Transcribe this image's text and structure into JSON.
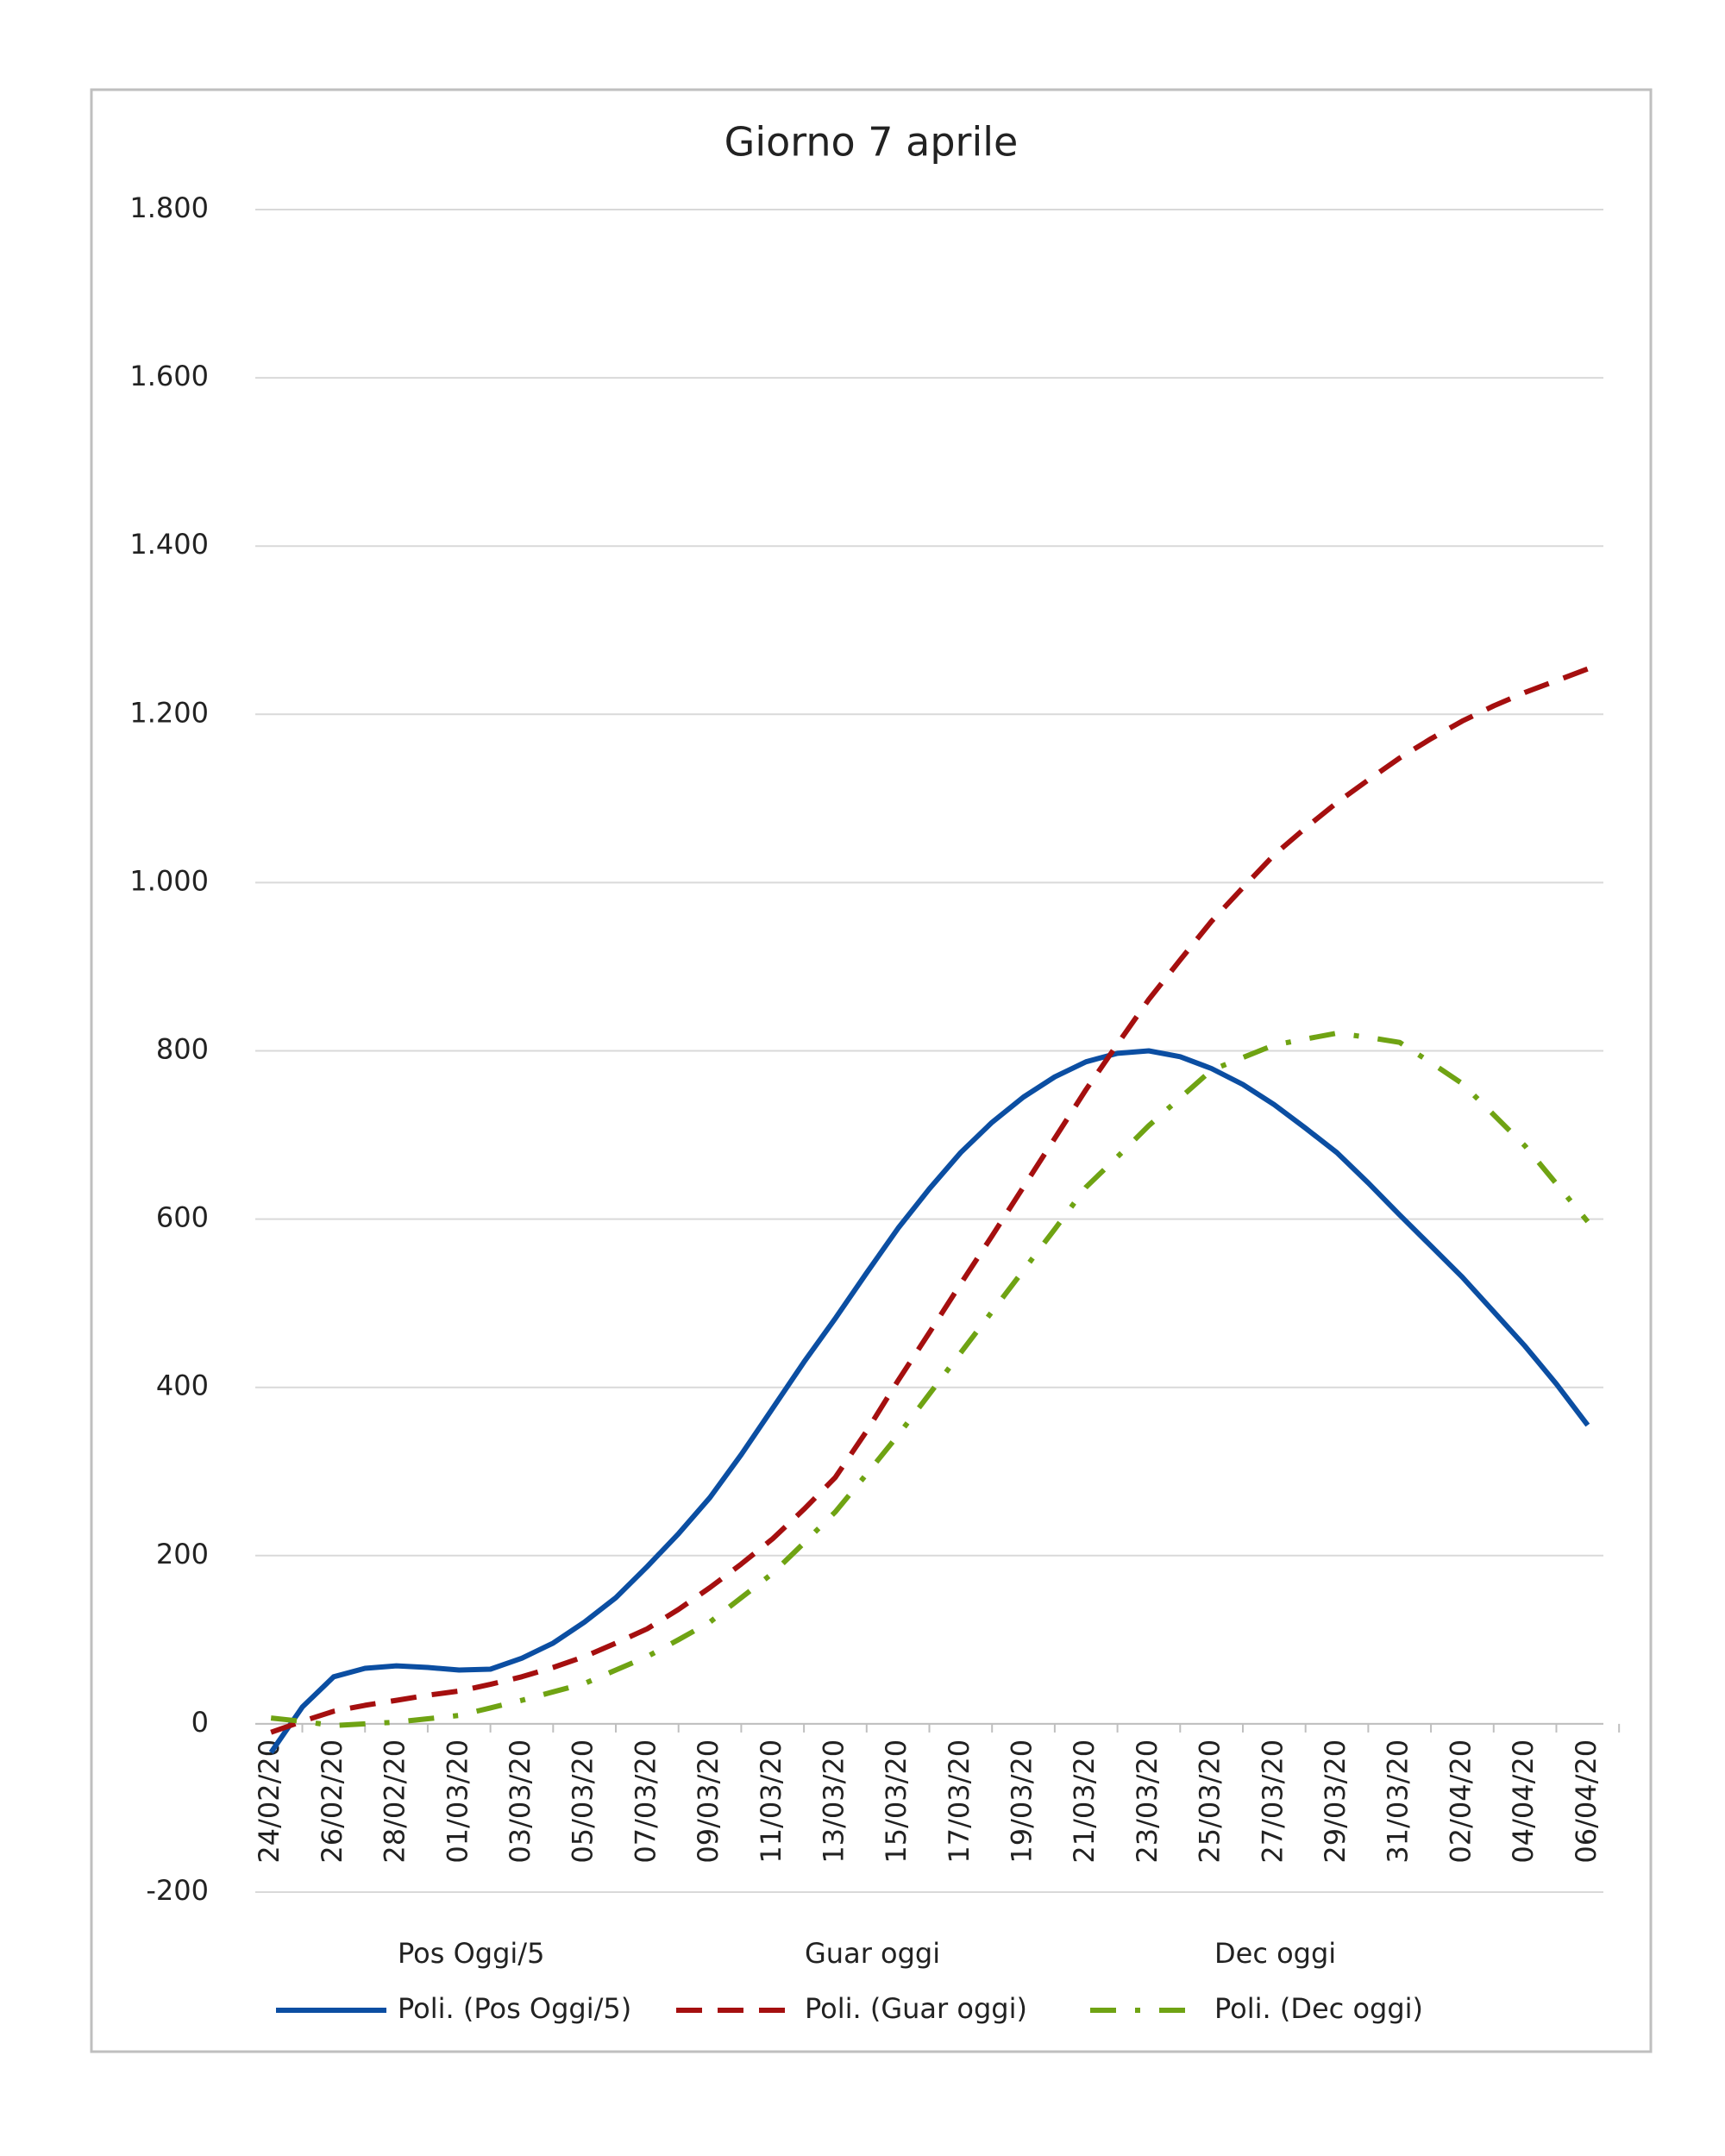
{
  "chart_data": {
    "type": "line",
    "title": "Giorno 7 aprile",
    "categories": [
      "24/02/20",
      null,
      "26/02/20",
      null,
      "28/02/20",
      null,
      "01/03/20",
      null,
      "03/03/20",
      null,
      "05/03/20",
      null,
      "07/03/20",
      null,
      "09/03/20",
      null,
      "11/03/20",
      null,
      "13/03/20",
      null,
      "15/03/20",
      null,
      "17/03/20",
      null,
      "19/03/20",
      null,
      "21/03/20",
      null,
      "23/03/20",
      null,
      "25/03/20",
      null,
      "27/03/20",
      null,
      "29/03/20",
      null,
      "31/03/20",
      null,
      "02/04/20",
      null,
      "04/04/20",
      null,
      "06/04/20"
    ],
    "legend_extra": [
      "Pos Oggi/5",
      "Guar oggi",
      "Dec oggi"
    ],
    "series": [
      {
        "name": "Poli. (Pos Oggi/5)",
        "color": "#0b4ea2",
        "dash": "solid",
        "values": [
          -34,
          20,
          56,
          66,
          69,
          67,
          64,
          65,
          78,
          96,
          121,
          150,
          187,
          226,
          269,
          320,
          375,
          430,
          482,
          536,
          589,
          636,
          679,
          715,
          745,
          769,
          787,
          797,
          800,
          793,
          779,
          760,
          736,
          708,
          679,
          643,
          605,
          568,
          531,
          490,
          449,
          404,
          355
        ]
      },
      {
        "name": "Poli. (Guar oggi)",
        "color": "#a50f0f",
        "dash": "dash",
        "values": [
          -10,
          3,
          15,
          22,
          28,
          34,
          39,
          47,
          56,
          67,
          80,
          96,
          113,
          136,
          162,
          190,
          220,
          255,
          293,
          348,
          408,
          465,
          523,
          580,
          638,
          696,
          754,
          808,
          861,
          908,
          954,
          994,
          1033,
          1065,
          1095,
          1122,
          1148,
          1171,
          1192,
          1210,
          1226,
          1240,
          1254
        ]
      },
      {
        "name": "Poli. (Dec oggi)",
        "color": "#6fa313",
        "dash": "dashdot",
        "values": [
          7,
          3,
          -2,
          0,
          2,
          6,
          10,
          19,
          28,
          38,
          48,
          64,
          80,
          100,
          121,
          150,
          179,
          215,
          252,
          297,
          343,
          392,
          441,
          490,
          539,
          588,
          638,
          674,
          711,
          744,
          777,
          792,
          807,
          814,
          821,
          816,
          810,
          786,
          761,
          724,
          687,
          642,
          597
        ]
      }
    ],
    "ylim": [
      -200,
      1800
    ],
    "yticks": [
      -200,
      0,
      200,
      400,
      600,
      800,
      {
        "value": 1000,
        "label": "1.000"
      },
      {
        "value": 1200,
        "label": "1.200"
      },
      {
        "value": 1400,
        "label": "1.400"
      },
      {
        "value": 1600,
        "label": "1.600"
      },
      {
        "value": 1800,
        "label": "1.800"
      }
    ],
    "grid": true
  }
}
